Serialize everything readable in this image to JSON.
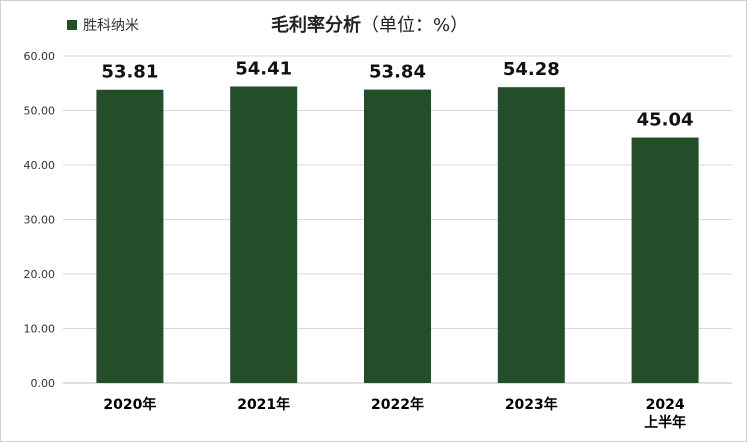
{
  "legend": {
    "label": "胜科纳米",
    "color": "#244d2a"
  },
  "title": {
    "main": "毛利率分析",
    "unit": "（单位：%）"
  },
  "chart_data": {
    "type": "bar",
    "categories": [
      "2020年",
      "2021年",
      "2022年",
      "2023年",
      "2024\n上半年"
    ],
    "series": [
      {
        "name": "胜科纳米",
        "values": [
          53.81,
          54.41,
          53.84,
          54.28,
          45.04
        ],
        "color": "#244d2a"
      }
    ],
    "data_labels": [
      "53.81",
      "54.41",
      "53.84",
      "54.28",
      "45.04"
    ],
    "yticks": [
      "0.00",
      "10.00",
      "20.00",
      "30.00",
      "40.00",
      "50.00",
      "60.00"
    ],
    "ylim": [
      0,
      60
    ],
    "grid": true,
    "legend_position": "top-left"
  }
}
